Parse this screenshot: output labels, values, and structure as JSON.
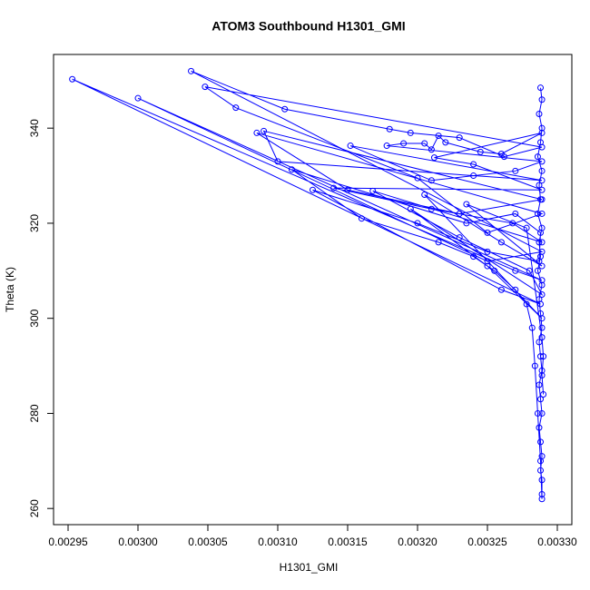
{
  "chart_data": {
    "type": "line",
    "title": "ATOM3 Southbound H1301_GMI",
    "xlabel": "H1301_GMI",
    "ylabel": "Theta (K)",
    "markers": true,
    "grid": false,
    "series": [
      {
        "color": "#0000ff",
        "x": [
          0.003288,
          0.003289,
          0.003287,
          0.003289,
          0.003288,
          0.003286,
          0.003289,
          0.003287,
          0.003288,
          0.003286,
          0.003289,
          0.003287,
          0.003288,
          0.003286,
          0.003289,
          0.003287,
          0.003288,
          0.003289,
          0.003287,
          0.003288,
          0.003289,
          0.003287,
          0.003288,
          0.003289,
          0.003287,
          0.003288,
          0.003289,
          0.003288,
          0.003289,
          0.003289,
          0.003289,
          0.003288,
          0.003286,
          0.003284,
          0.003282,
          0.003278,
          0.00327,
          0.003255,
          0.00324,
          0.003215,
          0.00316,
          0.00311,
          0.003235,
          0.00327,
          0.003288,
          0.003287,
          0.00325,
          0.0032,
          0.003125,
          0.00326,
          0.003288,
          0.002953,
          0.00327,
          0.003289,
          0.003,
          0.00325,
          0.003289,
          0.003038,
          0.003105,
          0.00318,
          0.003195,
          0.00323,
          0.003262,
          0.003289,
          0.003048,
          0.00307,
          0.0032,
          0.00325,
          0.003289,
          0.003085,
          0.00315,
          0.00323,
          0.003289,
          0.00309,
          0.0031,
          0.00324,
          0.003289,
          0.003152,
          0.00321,
          0.00327,
          0.003289,
          0.003178,
          0.00319,
          0.003205,
          0.00321,
          0.003215,
          0.00322,
          0.003245,
          0.00326,
          0.003289,
          0.003212,
          0.00324,
          0.003289,
          0.00314,
          0.00321,
          0.003268,
          0.003289,
          0.003168,
          0.00323,
          0.00328,
          0.003289,
          0.003195,
          0.00325,
          0.003289,
          0.003205,
          0.00326,
          0.003289,
          0.003235,
          0.003278,
          0.003289,
          0.00329,
          0.003289,
          0.00329
        ],
        "values": [
          348.5,
          346,
          343,
          340,
          337,
          334,
          331,
          328,
          325,
          322,
          319,
          316,
          313,
          310,
          307,
          304,
          301,
          298,
          295,
          292,
          289,
          286,
          283,
          280,
          277,
          274,
          271,
          268,
          266,
          263,
          262,
          270,
          280,
          290,
          298,
          303,
          306,
          310,
          313,
          316,
          321,
          331.3,
          320,
          322,
          318,
          312,
          314,
          320,
          327,
          306,
          303,
          350.3,
          310,
          308,
          346.3,
          312,
          314,
          352,
          344,
          339.8,
          339,
          338,
          334,
          336,
          348.7,
          344.3,
          329.5,
          318,
          322,
          339,
          327,
          322,
          325,
          339.4,
          333,
          330,
          329,
          336.3,
          329,
          331,
          333,
          336.3,
          336.8,
          336.8,
          335.5,
          338.4,
          337,
          335,
          334.6,
          339,
          333.8,
          332.4,
          327,
          327.4,
          323,
          320,
          316,
          326.8,
          317,
          310,
          305,
          323,
          311,
          300,
          326,
          316,
          311,
          324,
          319,
          296,
          292,
          288,
          284
        ]
      }
    ],
    "xlim": [
      0.0029396,
      0.0033104
    ],
    "ylim": [
      256.6,
      355.5
    ],
    "xticks": [
      {
        "value": 0.00295,
        "label": "0.00295"
      },
      {
        "value": 0.003,
        "label": "0.00300"
      },
      {
        "value": 0.00305,
        "label": "0.00305"
      },
      {
        "value": 0.0031,
        "label": "0.00310"
      },
      {
        "value": 0.00315,
        "label": "0.00315"
      },
      {
        "value": 0.0032,
        "label": "0.00320"
      },
      {
        "value": 0.00325,
        "label": "0.00325"
      },
      {
        "value": 0.0033,
        "label": "0.00330"
      }
    ],
    "yticks": [
      260,
      280,
      300,
      320,
      340
    ]
  }
}
